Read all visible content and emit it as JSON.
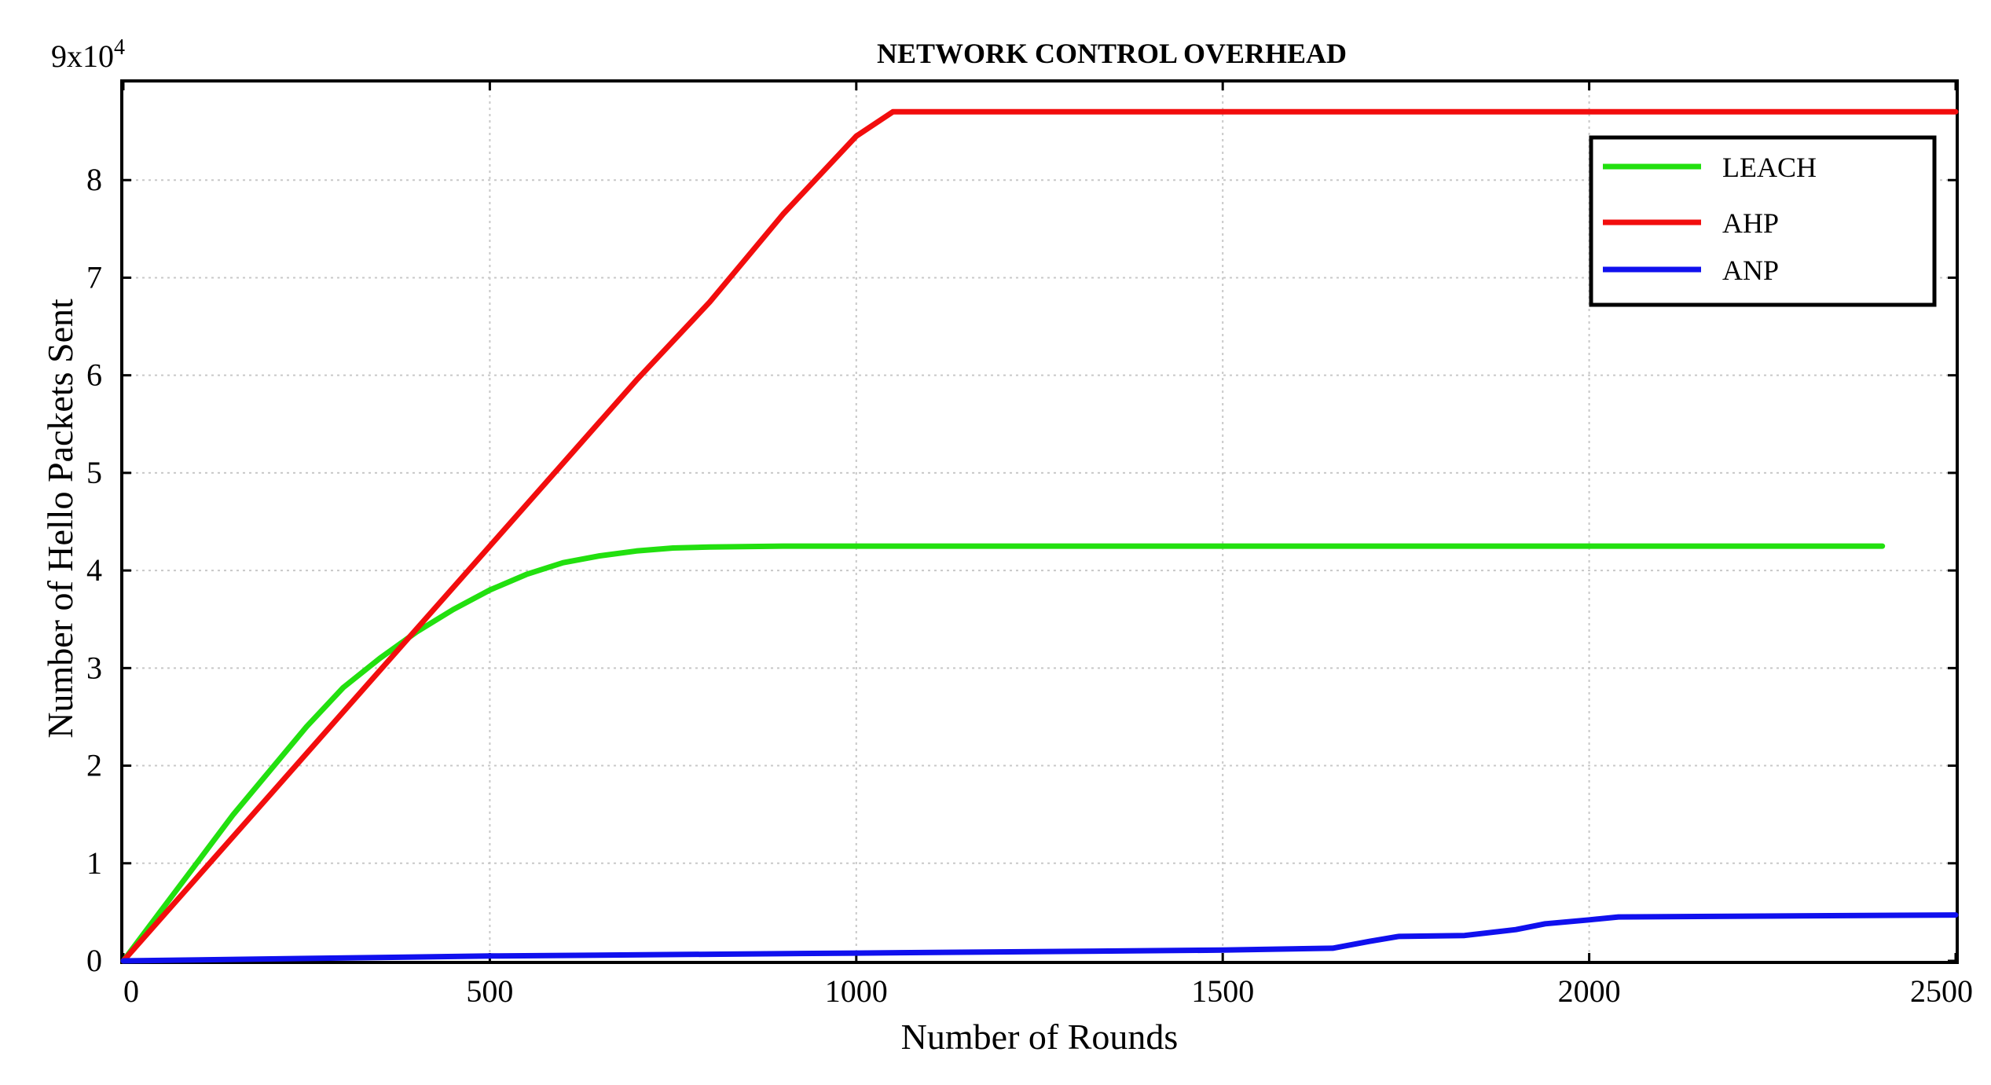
{
  "chart_data": {
    "type": "line",
    "title": "NETWORK CONTROL OVERHEAD",
    "xlabel": "Number of Rounds",
    "ylabel": "Number of Hello Packets Sent",
    "xlim": [
      0,
      2500
    ],
    "ylim": [
      0,
      90000
    ],
    "x_ticks": [
      0,
      500,
      1000,
      1500,
      2000,
      2500
    ],
    "x_tick_labels": [
      "0",
      "500",
      "1000",
      "1500",
      "2000",
      "2500"
    ],
    "y_ticks": [
      0,
      10000,
      20000,
      30000,
      40000,
      50000,
      60000,
      70000,
      80000
    ],
    "y_tick_labels": [
      "0",
      "1",
      "2",
      "3",
      "4",
      "5",
      "6",
      "7",
      "8"
    ],
    "y_multiplier_label": {
      "base": "9x10",
      "exponent": "4"
    },
    "grid": true,
    "legend_position": "top-right",
    "series": [
      {
        "name": "LEACH",
        "color": "#22e00f",
        "x": [
          0,
          50,
          100,
          150,
          200,
          250,
          300,
          350,
          400,
          450,
          500,
          550,
          600,
          650,
          700,
          750,
          800,
          900,
          1000,
          1500,
          2000,
          2400
        ],
        "y": [
          0,
          5000,
          10000,
          15000,
          19500,
          24000,
          28000,
          31000,
          33700,
          36000,
          38000,
          39600,
          40800,
          41500,
          42000,
          42300,
          42400,
          42500,
          42500,
          42500,
          42500,
          42500
        ]
      },
      {
        "name": "AHP",
        "color": "#f20d0d",
        "x": [
          0,
          100,
          200,
          300,
          400,
          500,
          600,
          700,
          800,
          850,
          900,
          950,
          1000,
          1050,
          1100,
          1500,
          2000,
          2500
        ],
        "y": [
          0,
          8500,
          17000,
          25500,
          34000,
          42500,
          51000,
          59500,
          67500,
          72000,
          76500,
          80500,
          84500,
          87000,
          87000,
          87000,
          87000,
          87000
        ]
      },
      {
        "name": "ANP",
        "color": "#1010ee",
        "x": [
          0,
          500,
          1000,
          1500,
          1650,
          1700,
          1740,
          1830,
          1900,
          1940,
          2000,
          2040,
          2500
        ],
        "y": [
          0,
          500,
          800,
          1100,
          1300,
          2000,
          2500,
          2600,
          3200,
          3800,
          4200,
          4500,
          4700
        ]
      }
    ]
  }
}
